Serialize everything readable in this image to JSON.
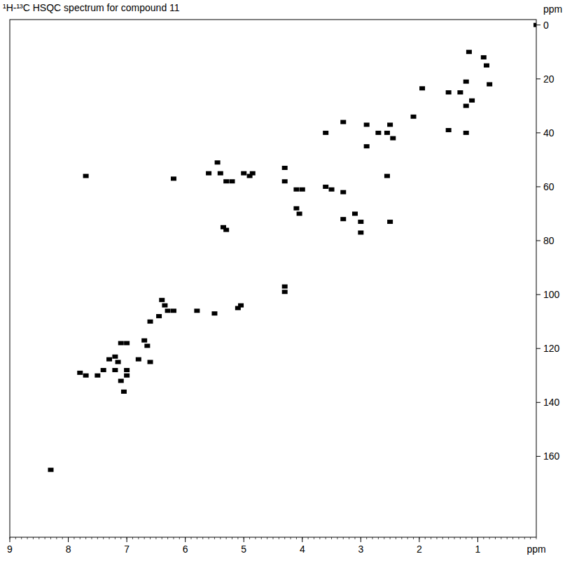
{
  "chart_data": {
    "type": "scatter",
    "title": "¹H-¹³C HSQC spectrum for compound 11",
    "x_label": "ppm",
    "y_label": "ppm",
    "xlim": [
      9,
      0
    ],
    "ylim": [
      -2,
      190
    ],
    "xticks": [
      9,
      8,
      7,
      6,
      5,
      4,
      3,
      2,
      1
    ],
    "yticks": [
      0,
      20,
      40,
      60,
      80,
      100,
      120,
      140,
      160
    ],
    "color": "#000000",
    "marker": "square",
    "grid": false,
    "x": [
      0.0,
      1.15,
      0.9,
      0.85,
      0.8,
      1.2,
      1.1,
      1.2,
      1.3,
      1.5,
      1.95,
      2.1,
      2.5,
      2.55,
      2.45,
      2.7,
      2.9,
      2.9,
      3.3,
      3.6,
      1.5,
      1.2,
      2.55,
      2.5,
      7.7,
      6.2,
      5.6,
      5.4,
      5.45,
      5.2,
      5.3,
      5.0,
      4.9,
      4.85,
      4.3,
      4.3,
      4.1,
      4.0,
      3.6,
      3.5,
      3.3,
      3.3,
      3.1,
      3.0,
      3.0,
      4.1,
      4.05,
      5.35,
      5.3,
      4.3,
      4.3,
      6.4,
      6.35,
      6.3,
      6.45,
      6.2,
      5.8,
      5.5,
      5.1,
      5.05,
      7.1,
      7.0,
      6.7,
      6.65,
      6.6,
      6.8,
      7.2,
      7.15,
      7.2,
      7.0,
      7.1,
      7.05,
      7.8,
      7.7,
      7.5,
      7.4,
      7.3,
      7.0,
      6.6,
      8.3
    ],
    "values": [
      0,
      10,
      12,
      15,
      22,
      21,
      28,
      30,
      25,
      25,
      23.5,
      34,
      37,
      40,
      42,
      40,
      37,
      45,
      36,
      40,
      39,
      40,
      56,
      73,
      56,
      57,
      55,
      55,
      51,
      58,
      58,
      55,
      56,
      55,
      53,
      58,
      61,
      61,
      60,
      61,
      62,
      72,
      70,
      73,
      77,
      68,
      70,
      75,
      76,
      97,
      99,
      102,
      104,
      106,
      108,
      106,
      106,
      107,
      105,
      104,
      118,
      118,
      117,
      119,
      125,
      124,
      123,
      125,
      128,
      128,
      132,
      136,
      129,
      130,
      130,
      128,
      124,
      130,
      110,
      165
    ]
  }
}
